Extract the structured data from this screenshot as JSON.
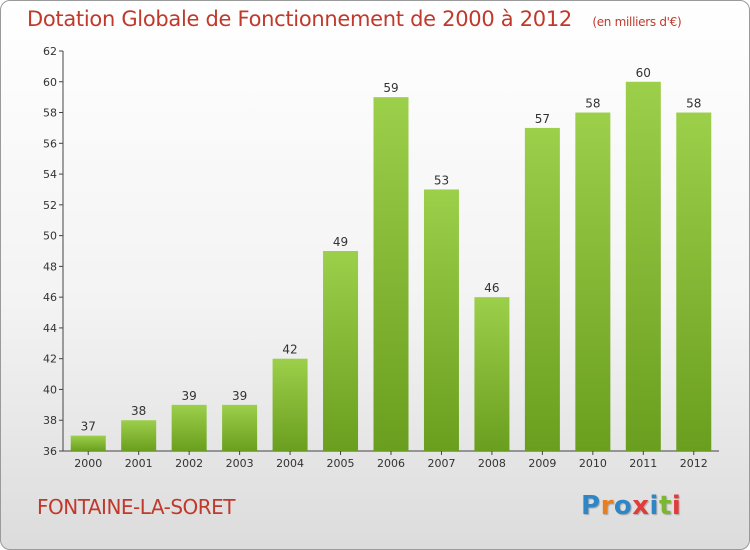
{
  "chart_data": {
    "type": "bar",
    "title": "Dotation Globale de Fonctionnement de 2000 à 2012",
    "unit_note": "(en milliers d'€)",
    "categories": [
      "2000",
      "2001",
      "2002",
      "2003",
      "2004",
      "2005",
      "2006",
      "2007",
      "2008",
      "2009",
      "2010",
      "2011",
      "2012"
    ],
    "values": [
      37,
      38,
      39,
      39,
      42,
      49,
      59,
      53,
      46,
      57,
      58,
      60,
      58
    ],
    "ylim": [
      36,
      62
    ],
    "yticks": [
      36,
      38,
      40,
      42,
      44,
      46,
      48,
      50,
      52,
      54,
      56,
      58,
      60,
      62
    ],
    "xlabel": "",
    "ylabel": "",
    "grid": false,
    "bar_color": "#8cc63f"
  },
  "commune": "FONTAINE-LA-SORET",
  "logo": {
    "letters": [
      "P",
      "r",
      "o",
      "x",
      "i",
      "t",
      "i"
    ]
  },
  "colors": {
    "title": "#c0392b",
    "bar_light": "#9ccf4a",
    "bar_dark": "#6a9e1e"
  }
}
